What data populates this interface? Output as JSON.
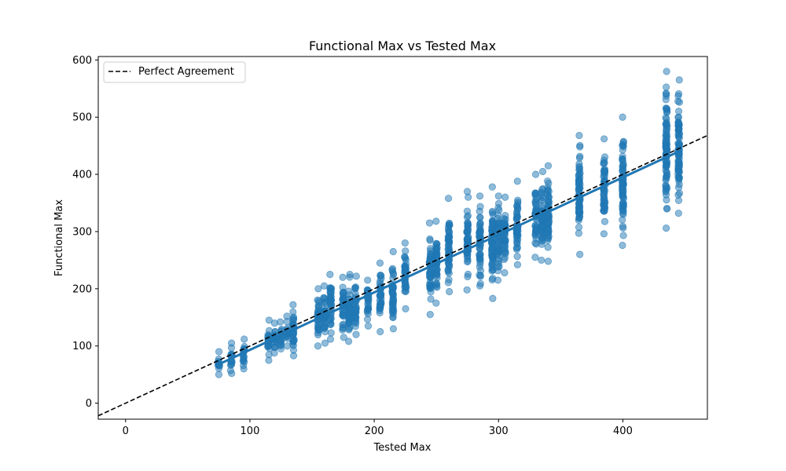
{
  "chart_data": {
    "type": "scatter",
    "title": "Functional Max vs Tested Max",
    "xlabel": "Tested Max",
    "ylabel": "Functional Max",
    "xlim": [
      -22,
      468
    ],
    "ylim": [
      -28,
      606
    ],
    "xticks": [
      0,
      100,
      200,
      300,
      400
    ],
    "yticks": [
      0,
      100,
      200,
      300,
      400,
      500,
      600
    ],
    "grid": false,
    "legend": {
      "placement": "top-left",
      "entries": [
        "Perfect Agreement"
      ]
    },
    "colors": {
      "points": "#1f77b4",
      "fit_line": "#1f77b4",
      "reference_line": "#000000"
    },
    "series": [
      {
        "kind": "scatter",
        "clusters": [
          {
            "x": 75,
            "min": 50,
            "max": 90
          },
          {
            "x": 85,
            "min": 52,
            "max": 105
          },
          {
            "x": 95,
            "min": 60,
            "max": 112
          },
          {
            "x": 115,
            "min": 75,
            "max": 145
          },
          {
            "x": 120,
            "min": 88,
            "max": 140
          },
          {
            "x": 125,
            "min": 95,
            "max": 142
          },
          {
            "x": 130,
            "min": 100,
            "max": 152
          },
          {
            "x": 135,
            "min": 83,
            "max": 172
          },
          {
            "x": 155,
            "min": 100,
            "max": 200
          },
          {
            "x": 160,
            "min": 105,
            "max": 205
          },
          {
            "x": 165,
            "min": 112,
            "max": 225
          },
          {
            "x": 175,
            "min": 115,
            "max": 220
          },
          {
            "x": 180,
            "min": 108,
            "max": 225
          },
          {
            "x": 185,
            "min": 120,
            "max": 222
          },
          {
            "x": 195,
            "min": 135,
            "max": 215
          },
          {
            "x": 205,
            "min": 125,
            "max": 245
          },
          {
            "x": 215,
            "min": 130,
            "max": 265
          },
          {
            "x": 225,
            "min": 165,
            "max": 280
          },
          {
            "x": 245,
            "min": 155,
            "max": 315
          },
          {
            "x": 250,
            "min": 175,
            "max": 318
          },
          {
            "x": 260,
            "min": 195,
            "max": 358
          },
          {
            "x": 275,
            "min": 198,
            "max": 370
          },
          {
            "x": 285,
            "min": 205,
            "max": 362
          },
          {
            "x": 295,
            "min": 183,
            "max": 378
          },
          {
            "x": 300,
            "min": 215,
            "max": 362
          },
          {
            "x": 305,
            "min": 228,
            "max": 360
          },
          {
            "x": 315,
            "min": 242,
            "max": 388
          },
          {
            "x": 330,
            "min": 255,
            "max": 400
          },
          {
            "x": 335,
            "min": 250,
            "max": 405
          },
          {
            "x": 340,
            "min": 248,
            "max": 415
          },
          {
            "x": 365,
            "min": 260,
            "max": 468
          },
          {
            "x": 385,
            "min": 296,
            "max": 462
          },
          {
            "x": 400,
            "min": 276,
            "max": 500
          },
          {
            "x": 435,
            "min": 306,
            "max": 580
          },
          {
            "x": 445,
            "min": 332,
            "max": 565
          }
        ]
      },
      {
        "kind": "fit_line",
        "points": [
          [
            75,
            68
          ],
          [
            445,
            440
          ]
        ]
      },
      {
        "kind": "reference_line",
        "name": "Perfect Agreement",
        "points": [
          [
            -22,
            -22
          ],
          [
            468,
            468
          ]
        ]
      }
    ]
  }
}
